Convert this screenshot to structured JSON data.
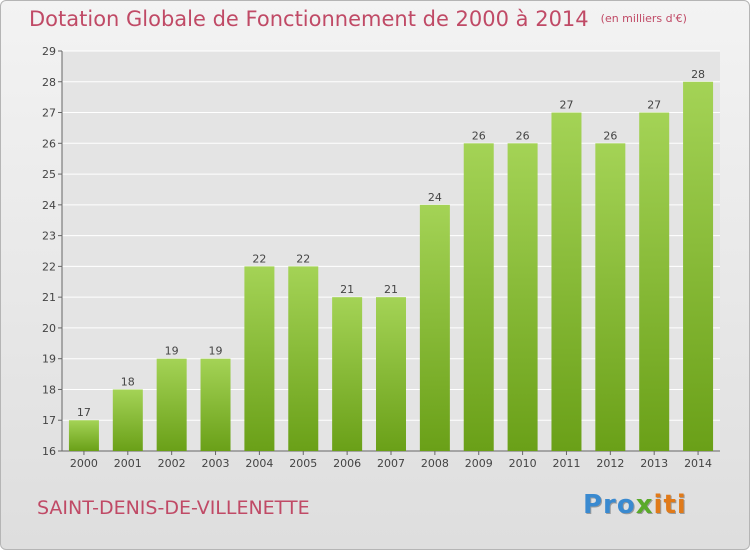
{
  "title": "Dotation Globale de Fonctionnement de 2000 à 2014",
  "subtitle": "(en milliers d'€)",
  "commune": "SAINT-DENIS-DE-VILLENETTE",
  "logo": {
    "part1": "Pro",
    "part2": "x",
    "part3": "iti"
  },
  "colors": {
    "bar_top": "#a4d356",
    "bar_bottom": "#6aa018",
    "title": "#c04a66",
    "grid": "#ffffff"
  },
  "chart_data": {
    "type": "bar",
    "categories": [
      "2000",
      "2001",
      "2002",
      "2003",
      "2004",
      "2005",
      "2006",
      "2007",
      "2008",
      "2009",
      "2010",
      "2011",
      "2012",
      "2013",
      "2014"
    ],
    "values": [
      17,
      18,
      19,
      19,
      22,
      22,
      21,
      21,
      24,
      26,
      26,
      27,
      26,
      27,
      28
    ],
    "title": "Dotation Globale de Fonctionnement de 2000 à 2014",
    "subtitle": "(en milliers d'€)",
    "xlabel": "",
    "ylabel": "",
    "ylim": [
      16,
      29
    ],
    "yticks": [
      16,
      17,
      18,
      19,
      20,
      21,
      22,
      23,
      24,
      25,
      26,
      27,
      28,
      29
    ],
    "grid": true,
    "data_labels": true
  }
}
